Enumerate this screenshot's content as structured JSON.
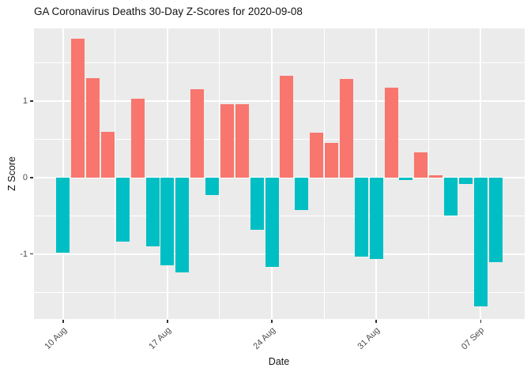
{
  "chart_data": {
    "type": "bar",
    "title": "GA Coronavirus Deaths 30-Day Z-Scores for 2020-09-08",
    "xlabel": "Date",
    "ylabel": "Z Score",
    "x": [
      "2020-08-10",
      "2020-08-11",
      "2020-08-12",
      "2020-08-13",
      "2020-08-14",
      "2020-08-15",
      "2020-08-16",
      "2020-08-17",
      "2020-08-18",
      "2020-08-19",
      "2020-08-20",
      "2020-08-21",
      "2020-08-22",
      "2020-08-23",
      "2020-08-24",
      "2020-08-25",
      "2020-08-26",
      "2020-08-27",
      "2020-08-28",
      "2020-08-29",
      "2020-08-30",
      "2020-08-31",
      "2020-09-01",
      "2020-09-02",
      "2020-09-03",
      "2020-09-04",
      "2020-09-05",
      "2020-09-06",
      "2020-09-07",
      "2020-09-08"
    ],
    "values": [
      -0.98,
      1.82,
      1.3,
      0.6,
      -0.84,
      1.03,
      -0.9,
      -1.15,
      -1.24,
      1.15,
      -0.23,
      0.96,
      0.96,
      -0.68,
      -1.17,
      1.33,
      -0.42,
      0.59,
      0.45,
      1.29,
      -1.03,
      -1.07,
      1.18,
      -0.03,
      0.33,
      0.03,
      -0.5,
      -0.08,
      -1.68,
      -1.11
    ],
    "x_tick_labels": [
      "10 Aug",
      "17 Aug",
      "24 Aug",
      "31 Aug",
      "07 Sep"
    ],
    "x_tick_days": [
      0,
      7,
      14,
      21,
      28
    ],
    "x_minor_days": [
      3.5,
      10.5,
      17.5,
      24.5
    ],
    "y_tick_labels": [
      "-1",
      "0",
      "1"
    ],
    "y_ticks": [
      -1,
      0,
      1
    ],
    "y_minor_ticks": [
      -1.5,
      -0.5,
      0.5,
      1.5
    ],
    "xlim_days": [
      -1.95,
      30.95
    ],
    "ylim": [
      -1.85,
      1.95
    ],
    "bar_width_days": 0.9,
    "positive_color": "#F8766D",
    "negative_color": "#00BFC4",
    "panel_background": "#EBEBEB",
    "grid_color": "#FFFFFF",
    "tick_color": "#333333",
    "axis_text_color": "#4D4D4D",
    "grid": "on",
    "legend": "none"
  }
}
